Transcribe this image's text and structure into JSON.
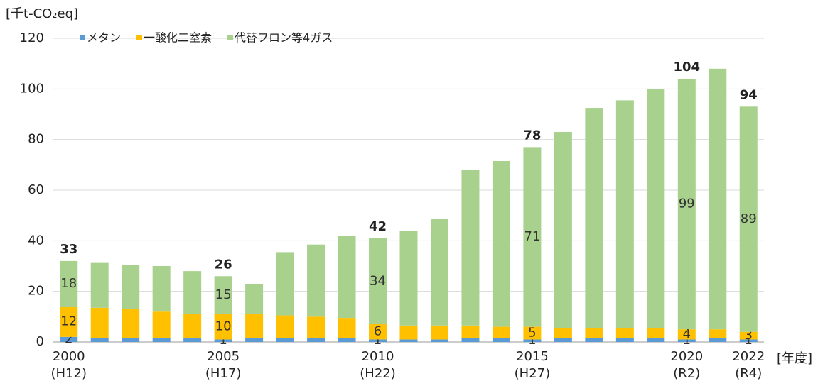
{
  "chart_data": {
    "type": "stacked_bar",
    "y_unit_label": "[千t-CO₂eq]",
    "x_unit_label": "[年度]",
    "categories": [
      "2000",
      null,
      null,
      null,
      null,
      "2005",
      null,
      null,
      null,
      null,
      "2010",
      null,
      null,
      null,
      null,
      "2015",
      null,
      null,
      null,
      null,
      "2020",
      null,
      "2022"
    ],
    "category_sublabels": [
      "(H12)",
      null,
      null,
      null,
      null,
      "(H17)",
      null,
      null,
      null,
      null,
      "(H22)",
      null,
      null,
      null,
      null,
      "(H27)",
      null,
      null,
      null,
      null,
      "(R2)",
      null,
      "(R4)"
    ],
    "series": [
      {
        "name": "メタン",
        "color": "#5b9bd5",
        "values": [
          2,
          1.5,
          1.5,
          1.5,
          1.5,
          1,
          1.5,
          1.5,
          1.5,
          1.5,
          1,
          1,
          1,
          1.5,
          1.5,
          1,
          1.5,
          1.5,
          1.5,
          1.5,
          1,
          1.5,
          1
        ],
        "value_labels": [
          "2",
          null,
          null,
          null,
          null,
          "1",
          null,
          null,
          null,
          null,
          "1",
          null,
          null,
          null,
          null,
          "1",
          null,
          null,
          null,
          null,
          "1",
          null,
          "1"
        ]
      },
      {
        "name": "一酸化二窒素",
        "color": "#ffc000",
        "values": [
          12,
          12,
          11.5,
          10.5,
          9.5,
          10,
          9.5,
          9,
          8.5,
          8,
          6,
          5.5,
          5.5,
          5,
          4.5,
          5,
          4,
          4,
          4,
          4,
          4,
          3.5,
          3
        ],
        "value_labels": [
          "12",
          null,
          null,
          null,
          null,
          "10",
          null,
          null,
          null,
          null,
          "6",
          null,
          null,
          null,
          null,
          "5",
          null,
          null,
          null,
          null,
          "4",
          null,
          "3"
        ]
      },
      {
        "name": "代替フロン等4ガス",
        "color": "#a9d18e",
        "values": [
          18,
          18,
          17.5,
          18,
          17,
          15,
          12,
          25,
          28.5,
          32.5,
          34,
          37.5,
          42,
          61.5,
          65.5,
          71,
          77.5,
          87,
          90,
          94.5,
          99,
          103,
          89
        ],
        "value_labels": [
          "18",
          null,
          null,
          null,
          null,
          "15",
          null,
          null,
          null,
          null,
          "34",
          null,
          null,
          null,
          null,
          "71",
          null,
          null,
          null,
          null,
          "99",
          null,
          "89"
        ]
      }
    ],
    "totals": [
      33,
      null,
      null,
      null,
      null,
      26,
      null,
      null,
      null,
      null,
      42,
      null,
      null,
      null,
      null,
      78,
      null,
      null,
      null,
      null,
      104,
      null,
      94
    ],
    "ylim": [
      0,
      120
    ],
    "yticks": [
      0,
      20,
      40,
      60,
      80,
      100,
      120
    ],
    "grid": true,
    "legend": "top"
  }
}
